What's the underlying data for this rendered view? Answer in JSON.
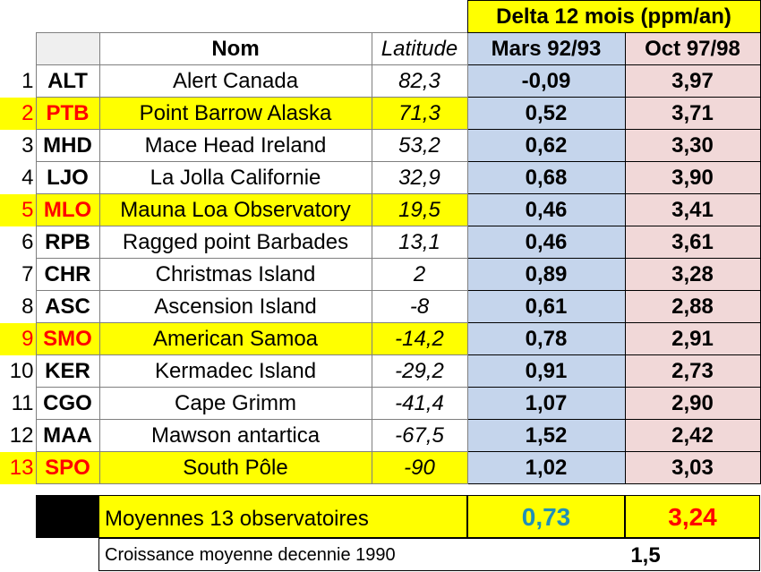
{
  "header": {
    "delta_title": "Delta 12 mois (ppm/an)",
    "col_nom": "Nom",
    "col_latitude": "Latitude",
    "col_mars": "Mars 92/93",
    "col_oct": "Oct 97/98"
  },
  "rows": [
    {
      "n": "1",
      "code": "ALT",
      "nom": "Alert   Canada",
      "lat": "82,3",
      "mars": "-0,09",
      "oct": "3,97"
    },
    {
      "n": "2",
      "code": "PTB",
      "nom": "Point Barrow   Alaska",
      "lat": "71,3",
      "mars": "0,52",
      "oct": "3,71"
    },
    {
      "n": "3",
      "code": "MHD",
      "nom": "Mace Head Ireland",
      "lat": "53,2",
      "mars": "0,62",
      "oct": "3,30"
    },
    {
      "n": "4",
      "code": "LJO",
      "nom": "La Jolla   Californie",
      "lat": "32,9",
      "mars": "0,68",
      "oct": "3,90"
    },
    {
      "n": "5",
      "code": "MLO",
      "nom": "Mauna Loa Observatory",
      "lat": "19,5",
      "mars": "0,46",
      "oct": "3,41"
    },
    {
      "n": "6",
      "code": "RPB",
      "nom": "Ragged point Barbades",
      "lat": "13,1",
      "mars": "0,46",
      "oct": "3,61"
    },
    {
      "n": "7",
      "code": "CHR",
      "nom": "Christmas Island",
      "lat": "2",
      "mars": "0,89",
      "oct": "3,28"
    },
    {
      "n": "8",
      "code": "ASC",
      "nom": "Ascension Island",
      "lat": "-8",
      "mars": "0,61",
      "oct": "2,88"
    },
    {
      "n": "9",
      "code": "SMO",
      "nom": "American Samoa",
      "lat": "-14,2",
      "mars": "0,78",
      "oct": "2,91"
    },
    {
      "n": "10",
      "code": "KER",
      "nom": "Kermadec Island",
      "lat": "-29,2",
      "mars": "0,91",
      "oct": "2,73"
    },
    {
      "n": "11",
      "code": "CGO",
      "nom": "Cape Grimm",
      "lat": "-41,4",
      "mars": "1,07",
      "oct": "2,90"
    },
    {
      "n": "12",
      "code": "MAA",
      "nom": "Mawson antartica",
      "lat": "-67,5",
      "mars": "1,52",
      "oct": "2,42"
    },
    {
      "n": "13",
      "code": "SPO",
      "nom": "South Pôle",
      "lat": "-90",
      "mars": "1,02",
      "oct": "3,03"
    }
  ],
  "highlighted_rows": [
    "2",
    "5",
    "9",
    "13"
  ],
  "summary": {
    "label": "Moyennes 13 observatoires",
    "mars_avg": "0,73",
    "oct_avg": "3,24"
  },
  "growth": {
    "label": "Croissance moyenne decennie 1990",
    "value": "1,5"
  },
  "colors": {
    "highlight": "#ffff00",
    "highlight_text": "#ff0000",
    "mars_bg": "#c5d5ec",
    "oct_bg": "#f1d8d8",
    "mars_avg_text": "#1f8fb8",
    "oct_avg_text": "#ff0000"
  }
}
